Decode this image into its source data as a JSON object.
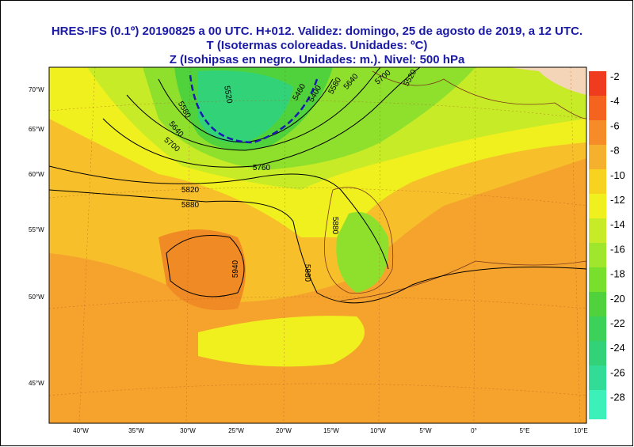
{
  "header": {
    "lines": [
      "HRES-IFS (0.1º) 20190825 a 00 UTC.  H+012. Validez: domingo, 25 de agosto de 2019,  a  12 UTC.",
      "T (Isotermas coloreadas. Unidades: ºC)",
      "Z (Isohipsas en negro. Unidades: m.).   Nivel: 500 hPa"
    ]
  },
  "colorbar": {
    "labels": [
      -2,
      -4,
      -6,
      -8,
      -10,
      -12,
      -14,
      -16,
      -18,
      -20,
      -22,
      -24,
      -26,
      -28
    ]
  },
  "lon_labels": [
    "40°W",
    "35°W",
    "30°W",
    "25°W",
    "20°W",
    "15°W",
    "10°W",
    "5°W",
    "0°",
    "5°E",
    "10°E"
  ],
  "lat_labels": [
    "70°W",
    "65°W",
    "60°W",
    "55°W",
    "50°W",
    "45°W"
  ],
  "contour_labels": [
    "5940",
    "5880",
    "5880",
    "5820",
    "5760",
    "5700",
    "5640",
    "5580",
    "5520",
    "5460",
    "5400",
    "5880",
    "5700",
    "5640",
    "5580",
    "5520"
  ]
}
